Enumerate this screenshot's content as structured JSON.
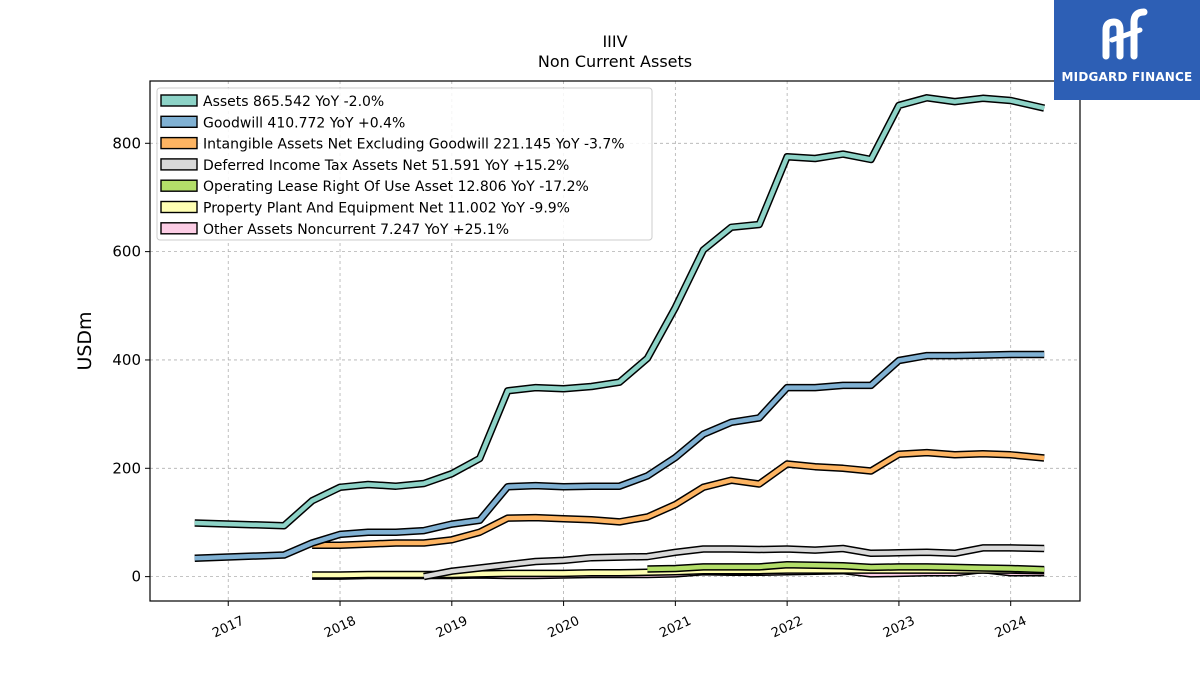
{
  "brand": {
    "name": "MIDGARD FINANCE",
    "bg_color": "#2d5fb5"
  },
  "chart_data": {
    "type": "line",
    "title": "IIIV",
    "subtitle": "Non Current  Assets",
    "xlabel": "",
    "ylabel": "USDm",
    "ylim": [
      -45,
      915
    ],
    "xlim": [
      2016.3,
      2024.62
    ],
    "yticks": [
      0,
      200,
      400,
      600,
      800
    ],
    "xticks": [
      "2017",
      "2018",
      "2019",
      "2020",
      "2021",
      "2022",
      "2023",
      "2024"
    ],
    "grid": true,
    "legend_position": "top-left",
    "series": [
      {
        "name": "Assets  865.542 YoY -2.0%",
        "color": "#8dd3c7",
        "points": [
          [
            2016.7,
            99
          ],
          [
            2017.5,
            94
          ],
          [
            2017.75,
            140
          ],
          [
            2018.0,
            165
          ],
          [
            2018.25,
            170
          ],
          [
            2018.5,
            167
          ],
          [
            2018.75,
            172
          ],
          [
            2019.0,
            190
          ],
          [
            2019.25,
            218
          ],
          [
            2019.5,
            343
          ],
          [
            2019.75,
            349
          ],
          [
            2020.0,
            347
          ],
          [
            2020.25,
            351
          ],
          [
            2020.5,
            359
          ],
          [
            2020.75,
            403
          ],
          [
            2021.0,
            497
          ],
          [
            2021.25,
            603
          ],
          [
            2021.5,
            645
          ],
          [
            2021.75,
            650
          ],
          [
            2022.0,
            775
          ],
          [
            2022.25,
            772
          ],
          [
            2022.5,
            780
          ],
          [
            2022.75,
            770
          ],
          [
            2023.0,
            870
          ],
          [
            2023.25,
            884
          ],
          [
            2023.5,
            877
          ],
          [
            2023.75,
            883
          ],
          [
            2024.0,
            879
          ],
          [
            2024.3,
            865
          ]
        ]
      },
      {
        "name": "Goodwill  410.772 YoY +0.4%",
        "color": "#80b1d3",
        "points": [
          [
            2016.7,
            34
          ],
          [
            2017.5,
            40
          ],
          [
            2017.75,
            62
          ],
          [
            2018.0,
            78
          ],
          [
            2018.25,
            82
          ],
          [
            2018.5,
            82
          ],
          [
            2018.75,
            85
          ],
          [
            2019.0,
            97
          ],
          [
            2019.25,
            104
          ],
          [
            2019.5,
            166
          ],
          [
            2019.75,
            168
          ],
          [
            2020.0,
            166
          ],
          [
            2020.25,
            167
          ],
          [
            2020.5,
            167
          ],
          [
            2020.75,
            186
          ],
          [
            2021.0,
            220
          ],
          [
            2021.25,
            263
          ],
          [
            2021.5,
            285
          ],
          [
            2021.75,
            293
          ],
          [
            2022.0,
            349
          ],
          [
            2022.25,
            349
          ],
          [
            2022.5,
            353
          ],
          [
            2022.75,
            353
          ],
          [
            2023.0,
            399
          ],
          [
            2023.25,
            408
          ],
          [
            2023.5,
            408
          ],
          [
            2023.75,
            409
          ],
          [
            2024.0,
            410
          ],
          [
            2024.3,
            410
          ]
        ]
      },
      {
        "name": "Intangible Assets Net Excluding Goodwill  221.145 YoY -3.7%",
        "color": "#fdb462",
        "points": [
          [
            2017.75,
            58
          ],
          [
            2018.0,
            58
          ],
          [
            2018.25,
            60
          ],
          [
            2018.5,
            62
          ],
          [
            2018.75,
            62
          ],
          [
            2019.0,
            68
          ],
          [
            2019.25,
            82
          ],
          [
            2019.5,
            108
          ],
          [
            2019.75,
            109
          ],
          [
            2020.0,
            107
          ],
          [
            2020.25,
            105
          ],
          [
            2020.5,
            101
          ],
          [
            2020.75,
            110
          ],
          [
            2021.0,
            133
          ],
          [
            2021.25,
            165
          ],
          [
            2021.5,
            178
          ],
          [
            2021.75,
            171
          ],
          [
            2022.0,
            208
          ],
          [
            2022.25,
            203
          ],
          [
            2022.5,
            200
          ],
          [
            2022.75,
            195
          ],
          [
            2023.0,
            226
          ],
          [
            2023.25,
            229
          ],
          [
            2023.5,
            225
          ],
          [
            2023.75,
            227
          ],
          [
            2024.0,
            225
          ],
          [
            2024.3,
            219
          ]
        ]
      },
      {
        "name": "Deferred Income Tax Assets Net  51.591 YoY +15.2%",
        "color": "#d9d9d9",
        "points": [
          [
            2018.75,
            0
          ],
          [
            2019.0,
            10
          ],
          [
            2019.25,
            16
          ],
          [
            2019.5,
            22
          ],
          [
            2019.75,
            28
          ],
          [
            2020.0,
            30
          ],
          [
            2020.25,
            35
          ],
          [
            2020.5,
            36
          ],
          [
            2020.75,
            37
          ],
          [
            2021.0,
            45
          ],
          [
            2021.25,
            51
          ],
          [
            2021.5,
            51
          ],
          [
            2021.75,
            50
          ],
          [
            2022.0,
            51
          ],
          [
            2022.25,
            49
          ],
          [
            2022.5,
            52
          ],
          [
            2022.75,
            43
          ],
          [
            2023.0,
            44
          ],
          [
            2023.25,
            45
          ],
          [
            2023.5,
            43
          ],
          [
            2023.75,
            53
          ],
          [
            2024.0,
            53
          ],
          [
            2024.3,
            52
          ]
        ]
      },
      {
        "name": "Operating Lease Right Of Use Asset  12.806 YoY -17.2%",
        "color": "#b3de69",
        "points": [
          [
            2020.75,
            14
          ],
          [
            2021.0,
            15
          ],
          [
            2021.25,
            18
          ],
          [
            2021.5,
            18
          ],
          [
            2021.75,
            18
          ],
          [
            2022.0,
            22
          ],
          [
            2022.25,
            21
          ],
          [
            2022.5,
            20
          ],
          [
            2022.75,
            17
          ],
          [
            2023.0,
            18
          ],
          [
            2023.25,
            18
          ],
          [
            2023.5,
            17
          ],
          [
            2023.75,
            16
          ],
          [
            2024.0,
            15
          ],
          [
            2024.3,
            13
          ]
        ]
      },
      {
        "name": "Property Plant And Equipment Net  11.002 YoY -9.9%",
        "color": "#ffffb3",
        "points": [
          [
            2017.75,
            3
          ],
          [
            2018.0,
            3
          ],
          [
            2018.25,
            4
          ],
          [
            2018.5,
            4
          ],
          [
            2018.75,
            4
          ],
          [
            2019.0,
            4
          ],
          [
            2019.25,
            5
          ],
          [
            2019.5,
            6
          ],
          [
            2019.75,
            6
          ],
          [
            2020.0,
            6
          ],
          [
            2020.25,
            7
          ],
          [
            2020.5,
            7
          ],
          [
            2020.75,
            8
          ],
          [
            2021.0,
            9
          ],
          [
            2021.25,
            11
          ],
          [
            2021.5,
            11
          ],
          [
            2021.75,
            11
          ],
          [
            2022.0,
            12
          ],
          [
            2022.25,
            12
          ],
          [
            2022.5,
            12
          ],
          [
            2022.75,
            12
          ],
          [
            2023.0,
            12
          ],
          [
            2023.25,
            12
          ],
          [
            2023.5,
            12
          ],
          [
            2023.75,
            12
          ],
          [
            2024.0,
            12
          ],
          [
            2024.3,
            11
          ]
        ]
      },
      {
        "name": "Other Assets Noncurrent  7.247 YoY +25.1%",
        "color": "#fccde5",
        "points": [
          [
            2017.75,
            1
          ],
          [
            2018.0,
            1
          ],
          [
            2018.25,
            2
          ],
          [
            2018.5,
            2
          ],
          [
            2018.75,
            2
          ],
          [
            2019.0,
            2
          ],
          [
            2019.25,
            3
          ],
          [
            2019.5,
            2
          ],
          [
            2019.75,
            2
          ],
          [
            2020.0,
            3
          ],
          [
            2020.25,
            4
          ],
          [
            2020.5,
            4
          ],
          [
            2020.75,
            4
          ],
          [
            2021.0,
            5
          ],
          [
            2021.25,
            9
          ],
          [
            2021.5,
            8
          ],
          [
            2021.75,
            8
          ],
          [
            2022.0,
            9
          ],
          [
            2022.25,
            10
          ],
          [
            2022.5,
            11
          ],
          [
            2022.75,
            5
          ],
          [
            2023.0,
            6
          ],
          [
            2023.25,
            7
          ],
          [
            2023.5,
            7
          ],
          [
            2023.75,
            13
          ],
          [
            2024.0,
            7
          ],
          [
            2024.3,
            7
          ]
        ]
      }
    ]
  }
}
